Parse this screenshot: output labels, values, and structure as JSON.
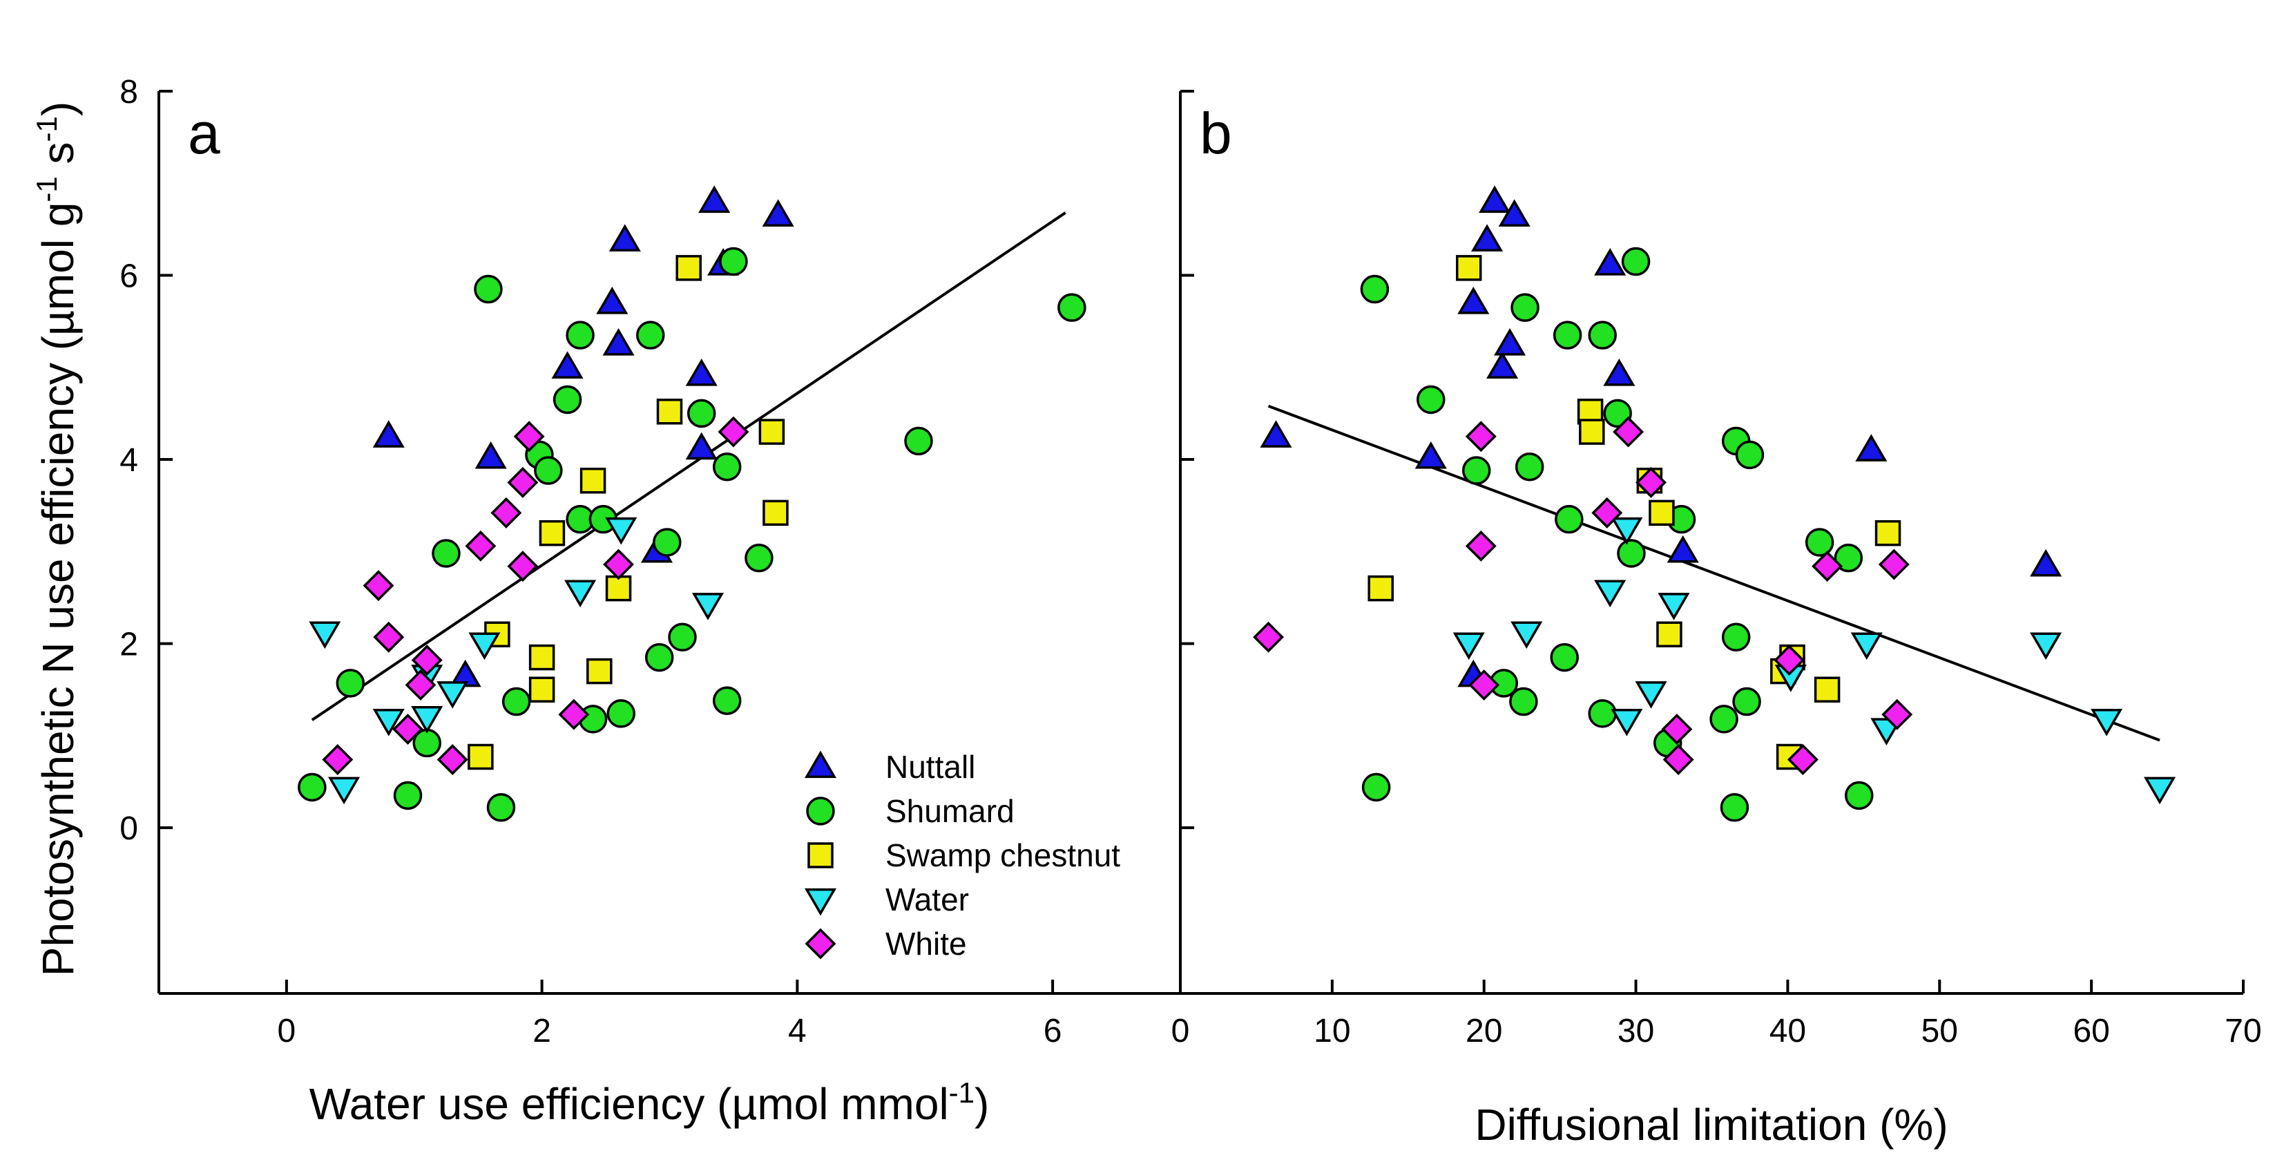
{
  "colors": {
    "Nuttall": "#1515e6",
    "Shumard": "#22e022",
    "Swamp chestnut": "#f2ee0c",
    "Water": "#29e6f2",
    "White": "#f022f0"
  },
  "markers": {
    "Nuttall": "triangle-up",
    "Shumard": "circle",
    "Swamp chestnut": "square",
    "Water": "triangle-down",
    "White": "diamond"
  },
  "legend": [
    "Nuttall",
    "Shumard",
    "Swamp chestnut",
    "Water",
    "White"
  ],
  "chart_data": [
    {
      "type": "scatter",
      "panel": "a",
      "title": "",
      "xlabel": "Water use efficiency",
      "xunit": "µmol mmol",
      "xunit_exp": "-1",
      "ylabel": "Photosynthetic N use efficiency (µmol g",
      "ylabel_exp1": "-1",
      "ylabel_mid": " s",
      "ylabel_exp2": "-1",
      "ylabel_end": ")",
      "xlim": [
        -1,
        7
      ],
      "ylim": [
        -1.8,
        8
      ],
      "xticks": [
        0,
        2,
        4,
        6
      ],
      "yticks": [
        0,
        2,
        4,
        6,
        8
      ],
      "grid": false,
      "legend_position": "bottom-right",
      "fit_line": [
        [
          0.2,
          1.17
        ],
        [
          6.1,
          6.68
        ]
      ],
      "series": [
        {
          "name": "Nuttall",
          "points": [
            [
              0.8,
              4.25
            ],
            [
              1.6,
              4.02
            ],
            [
              2.2,
              5.0
            ],
            [
              2.55,
              5.7
            ],
            [
              2.6,
              5.25
            ],
            [
              2.65,
              6.38
            ],
            [
              3.25,
              4.92
            ],
            [
              3.25,
              4.12
            ],
            [
              2.9,
              3.0
            ],
            [
              1.4,
              1.65
            ],
            [
              3.35,
              6.8
            ],
            [
              3.42,
              6.12
            ],
            [
              3.85,
              6.65
            ]
          ]
        },
        {
          "name": "Shumard",
          "points": [
            [
              1.58,
              5.85
            ],
            [
              2.3,
              5.35
            ],
            [
              2.85,
              5.35
            ],
            [
              3.5,
              6.15
            ],
            [
              6.15,
              5.65
            ],
            [
              2.2,
              4.65
            ],
            [
              3.25,
              4.5
            ],
            [
              1.98,
              4.05
            ],
            [
              2.05,
              3.88
            ],
            [
              3.45,
              3.92
            ],
            [
              4.95,
              4.2
            ],
            [
              2.3,
              3.35
            ],
            [
              2.48,
              3.35
            ],
            [
              1.25,
              2.98
            ],
            [
              2.98,
              3.1
            ],
            [
              3.7,
              2.93
            ],
            [
              0.5,
              1.57
            ],
            [
              3.1,
              2.07
            ],
            [
              2.92,
              1.85
            ],
            [
              1.1,
              0.92
            ],
            [
              1.8,
              1.37
            ],
            [
              3.45,
              1.38
            ],
            [
              2.4,
              1.18
            ],
            [
              2.62,
              1.24
            ],
            [
              0.2,
              0.44
            ],
            [
              0.95,
              0.35
            ],
            [
              1.68,
              0.22
            ]
          ]
        },
        {
          "name": "Swamp chestnut",
          "points": [
            [
              3.15,
              6.08
            ],
            [
              3.0,
              4.52
            ],
            [
              3.8,
              4.3
            ],
            [
              2.4,
              3.77
            ],
            [
              2.08,
              3.2
            ],
            [
              3.83,
              3.42
            ],
            [
              2.6,
              2.6
            ],
            [
              1.65,
              2.1
            ],
            [
              2.0,
              1.85
            ],
            [
              2.45,
              1.7
            ],
            [
              2.0,
              1.5
            ],
            [
              1.52,
              0.77
            ]
          ]
        },
        {
          "name": "Water",
          "points": [
            [
              0.3,
              2.12
            ],
            [
              0.8,
              1.17
            ],
            [
              1.1,
              1.2
            ],
            [
              1.3,
              1.47
            ],
            [
              1.1,
              1.65
            ],
            [
              1.55,
              2.0
            ],
            [
              2.3,
              2.57
            ],
            [
              2.62,
              3.25
            ],
            [
              3.3,
              2.43
            ],
            [
              0.45,
              0.43
            ]
          ]
        },
        {
          "name": "White",
          "points": [
            [
              0.72,
              2.63
            ],
            [
              0.8,
              2.07
            ],
            [
              0.4,
              0.74
            ],
            [
              0.95,
              1.07
            ],
            [
              1.05,
              1.55
            ],
            [
              1.1,
              1.82
            ],
            [
              1.3,
              0.74
            ],
            [
              1.52,
              3.06
            ],
            [
              1.72,
              3.42
            ],
            [
              1.85,
              2.84
            ],
            [
              1.85,
              3.75
            ],
            [
              1.9,
              4.25
            ],
            [
              2.25,
              1.23
            ],
            [
              2.6,
              2.86
            ],
            [
              3.5,
              4.3
            ]
          ]
        }
      ]
    },
    {
      "type": "scatter",
      "panel": "b",
      "title": "",
      "xlabel": "Diffusional limitation (%)",
      "ylabel": "",
      "xlim": [
        0,
        70
      ],
      "ylim": [
        -1.8,
        8
      ],
      "xticks": [
        0,
        10,
        20,
        30,
        40,
        50,
        60,
        70
      ],
      "yticks": [
        0,
        2,
        4,
        6,
        8
      ],
      "grid": false,
      "fit_line": [
        [
          5.8,
          4.58
        ],
        [
          64.5,
          0.95
        ]
      ],
      "series": [
        {
          "name": "Nuttall",
          "points": [
            [
              6.3,
              4.25
            ],
            [
              16.5,
              4.02
            ],
            [
              19.3,
              5.7
            ],
            [
              20.2,
              6.38
            ],
            [
              20.7,
              6.8
            ],
            [
              21.2,
              5.0
            ],
            [
              21.7,
              5.25
            ],
            [
              22.0,
              6.65
            ],
            [
              28.3,
              6.12
            ],
            [
              28.9,
              4.92
            ],
            [
              33.1,
              3.0
            ],
            [
              45.5,
              4.1
            ],
            [
              57.0,
              2.85
            ],
            [
              19.3,
              1.65
            ]
          ]
        },
        {
          "name": "Shumard",
          "points": [
            [
              12.8,
              5.85
            ],
            [
              16.5,
              4.65
            ],
            [
              19.5,
              3.88
            ],
            [
              22.7,
              5.65
            ],
            [
              23.0,
              3.92
            ],
            [
              25.5,
              5.35
            ],
            [
              27.8,
              5.35
            ],
            [
              28.8,
              4.5
            ],
            [
              30.0,
              6.15
            ],
            [
              25.6,
              3.35
            ],
            [
              29.7,
              2.98
            ],
            [
              33.0,
              3.35
            ],
            [
              36.6,
              4.2
            ],
            [
              37.5,
              4.05
            ],
            [
              42.1,
              3.1
            ],
            [
              44.0,
              2.93
            ],
            [
              36.6,
              2.07
            ],
            [
              25.3,
              1.85
            ],
            [
              21.3,
              1.57
            ],
            [
              22.6,
              1.37
            ],
            [
              27.8,
              1.24
            ],
            [
              32.1,
              0.92
            ],
            [
              35.8,
              1.18
            ],
            [
              37.3,
              1.37
            ],
            [
              12.9,
              0.44
            ],
            [
              36.5,
              0.22
            ],
            [
              44.7,
              0.35
            ]
          ]
        },
        {
          "name": "Swamp chestnut",
          "points": [
            [
              19.0,
              6.08
            ],
            [
              27.0,
              4.52
            ],
            [
              27.1,
              4.3
            ],
            [
              30.9,
              3.77
            ],
            [
              31.7,
              3.42
            ],
            [
              46.6,
              3.2
            ],
            [
              13.2,
              2.6
            ],
            [
              32.2,
              2.1
            ],
            [
              40.3,
              1.85
            ],
            [
              39.7,
              1.7
            ],
            [
              42.6,
              1.5
            ],
            [
              40.1,
              0.77
            ]
          ]
        },
        {
          "name": "Water",
          "points": [
            [
              19.0,
              2.0
            ],
            [
              22.8,
              2.12
            ],
            [
              28.3,
              2.57
            ],
            [
              29.4,
              3.25
            ],
            [
              32.5,
              2.43
            ],
            [
              29.4,
              1.17
            ],
            [
              31.0,
              1.47
            ],
            [
              40.2,
              1.65
            ],
            [
              45.2,
              2.0
            ],
            [
              46.5,
              1.07
            ],
            [
              57.0,
              2.0
            ],
            [
              61.0,
              1.17
            ],
            [
              64.5,
              0.43
            ]
          ]
        },
        {
          "name": "White",
          "points": [
            [
              5.8,
              2.07
            ],
            [
              19.8,
              3.06
            ],
            [
              19.8,
              4.25
            ],
            [
              20.0,
              1.55
            ],
            [
              28.1,
              3.42
            ],
            [
              29.5,
              4.3
            ],
            [
              31.0,
              3.75
            ],
            [
              32.7,
              1.07
            ],
            [
              32.8,
              0.74
            ],
            [
              40.1,
              1.82
            ],
            [
              41.0,
              0.74
            ],
            [
              42.6,
              2.84
            ],
            [
              47.0,
              2.86
            ],
            [
              47.2,
              1.23
            ]
          ]
        }
      ]
    }
  ]
}
